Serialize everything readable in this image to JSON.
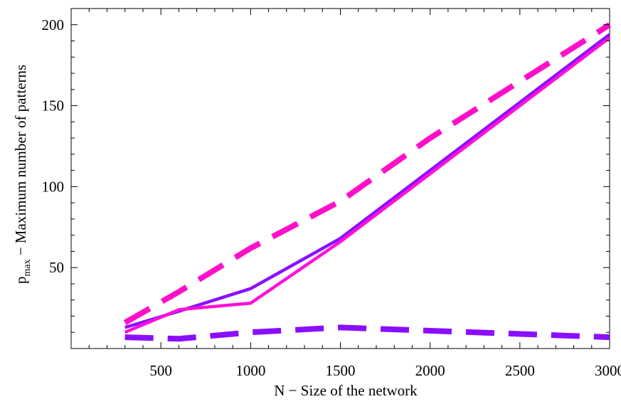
{
  "chart_data": {
    "type": "line",
    "title": "",
    "xlabel": "N − Size of the network",
    "ylabel": {
      "main": "p",
      "subscript": "max",
      "rest": " − Maximum number of patterns"
    },
    "xlim": [
      0,
      3000
    ],
    "ylim": [
      0,
      210
    ],
    "x_ticks": [
      500,
      1000,
      1500,
      2000,
      2500,
      3000
    ],
    "y_ticks": [
      50,
      100,
      150,
      200
    ],
    "grid": false,
    "legend": "none",
    "series": [
      {
        "style": "solid",
        "color": "#8a0fff",
        "x": [
          300,
          600,
          1000,
          1500,
          2000,
          2500,
          3000
        ],
        "y": [
          13,
          23,
          37,
          68,
          110,
          152,
          194
        ]
      },
      {
        "style": "solid",
        "color": "#ff10d8",
        "x": [
          300,
          600,
          1000,
          1500,
          2000,
          2500,
          3000
        ],
        "y": [
          10,
          24,
          28,
          66,
          108,
          150,
          192
        ]
      },
      {
        "style": "dashed",
        "color": "#ff10c8",
        "x": [
          300,
          600,
          1000,
          1500,
          2000,
          2500,
          3000
        ],
        "y": [
          16,
          35,
          62,
          91,
          130,
          165,
          200
        ]
      },
      {
        "style": "dashed",
        "color": "#8a0fff",
        "x": [
          300,
          600,
          1000,
          1500,
          2000,
          2500,
          3000
        ],
        "y": [
          7,
          6,
          10,
          13,
          11,
          9,
          7
        ]
      }
    ]
  }
}
